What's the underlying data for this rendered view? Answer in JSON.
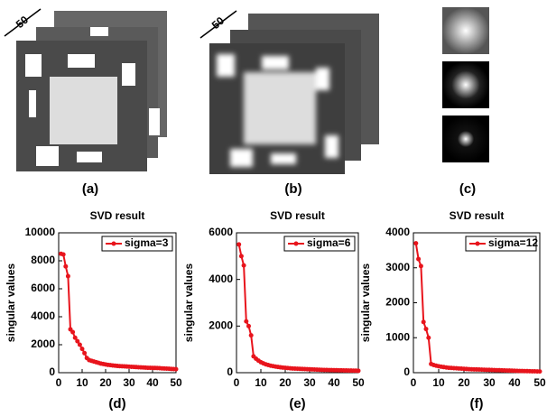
{
  "figure": {
    "panels": [
      {
        "label": "(a)",
        "depth": "50"
      },
      {
        "label": "(b)",
        "depth": "50"
      },
      {
        "label": "(c)"
      }
    ]
  },
  "chart_data": [
    {
      "type": "line",
      "label": "(d)",
      "title": "SVD  result",
      "y_label": "singular  values",
      "legend": "upper right",
      "x": [
        1,
        2,
        3,
        4,
        5,
        6,
        7,
        8,
        9,
        10,
        11,
        12,
        13,
        14,
        15,
        16,
        17,
        18,
        19,
        20,
        21,
        22,
        23,
        24,
        25,
        26,
        27,
        28,
        29,
        30,
        31,
        32,
        33,
        34,
        35,
        36,
        37,
        38,
        39,
        40,
        41,
        42,
        43,
        44,
        45,
        46,
        47,
        48,
        49,
        50
      ],
      "series": [
        {
          "name": "sigma=3",
          "color": "#e8141c",
          "values": [
            8500,
            8450,
            7600,
            6900,
            3100,
            2900,
            2500,
            2250,
            2000,
            1700,
            1400,
            1050,
            900,
            850,
            800,
            750,
            700,
            650,
            620,
            590,
            560,
            540,
            520,
            500,
            480,
            470,
            460,
            450,
            440,
            430,
            420,
            410,
            400,
            390,
            380,
            370,
            360,
            350,
            345,
            340,
            335,
            330,
            320,
            310,
            300,
            290,
            280,
            270,
            260,
            250
          ]
        }
      ],
      "xlim": [
        0,
        50
      ],
      "xticks": [
        0,
        10,
        20,
        30,
        40,
        50
      ],
      "ylim": [
        0,
        10000
      ],
      "yticks": [
        0,
        2000,
        4000,
        6000,
        8000,
        10000
      ]
    },
    {
      "type": "line",
      "label": "(e)",
      "title": "SVD  result",
      "y_label": "singular  values",
      "legend": "upper right",
      "x": [
        1,
        2,
        3,
        4,
        5,
        6,
        7,
        8,
        9,
        10,
        11,
        12,
        13,
        14,
        15,
        16,
        17,
        18,
        19,
        20,
        21,
        22,
        23,
        24,
        25,
        26,
        27,
        28,
        29,
        30,
        31,
        32,
        33,
        34,
        35,
        36,
        37,
        38,
        39,
        40,
        41,
        42,
        43,
        44,
        45,
        46,
        47,
        48,
        49,
        50
      ],
      "series": [
        {
          "name": "sigma=6",
          "color": "#e8141c",
          "values": [
            5500,
            5000,
            4600,
            2200,
            2000,
            1600,
            700,
            600,
            520,
            450,
            400,
            360,
            330,
            300,
            280,
            260,
            245,
            230,
            220,
            210,
            200,
            190,
            180,
            175,
            170,
            165,
            160,
            155,
            150,
            145,
            140,
            135,
            130,
            125,
            120,
            118,
            115,
            112,
            110,
            108,
            105,
            102,
            100,
            98,
            95,
            92,
            90,
            88,
            85,
            80
          ]
        }
      ],
      "xlim": [
        0,
        50
      ],
      "xticks": [
        0,
        10,
        20,
        30,
        40,
        50
      ],
      "ylim": [
        0,
        6000
      ],
      "yticks": [
        0,
        2000,
        4000,
        6000
      ]
    },
    {
      "type": "line",
      "label": "(f)",
      "title": "SVD  result",
      "y_label": "singular  values",
      "legend": "upper right",
      "x": [
        1,
        2,
        3,
        4,
        5,
        6,
        7,
        8,
        9,
        10,
        11,
        12,
        13,
        14,
        15,
        16,
        17,
        18,
        19,
        20,
        21,
        22,
        23,
        24,
        25,
        26,
        27,
        28,
        29,
        30,
        31,
        32,
        33,
        34,
        35,
        36,
        37,
        38,
        39,
        40,
        41,
        42,
        43,
        44,
        45,
        46,
        47,
        48,
        49,
        50
      ],
      "series": [
        {
          "name": "sigma=12",
          "color": "#e8141c",
          "values": [
            3700,
            3250,
            3050,
            1450,
            1250,
            1000,
            250,
            220,
            200,
            185,
            170,
            160,
            150,
            140,
            135,
            130,
            125,
            120,
            115,
            110,
            105,
            100,
            98,
            95,
            92,
            90,
            88,
            85,
            82,
            80,
            78,
            75,
            72,
            70,
            68,
            65,
            62,
            60,
            58,
            55,
            52,
            50,
            48,
            46,
            44,
            42,
            40,
            38,
            36,
            35
          ]
        }
      ],
      "xlim": [
        0,
        50
      ],
      "xticks": [
        0,
        10,
        20,
        30,
        40,
        50
      ],
      "ylim": [
        0,
        4000
      ],
      "yticks": [
        0,
        1000,
        2000,
        3000,
        4000
      ]
    }
  ]
}
